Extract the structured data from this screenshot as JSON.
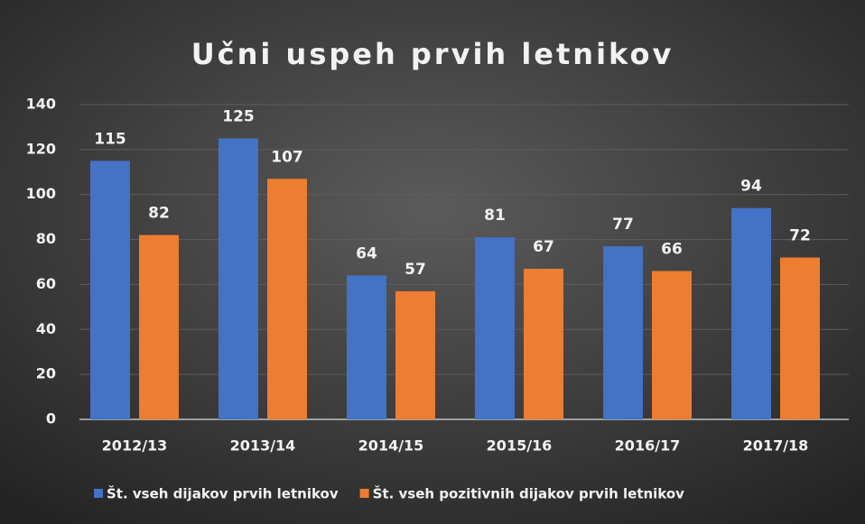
{
  "chart_data": {
    "type": "bar",
    "title": "Učni uspeh prvih letnikov",
    "categories": [
      "2012/13",
      "2013/14",
      "2014/15",
      "2015/16",
      "2016/17",
      "2017/18"
    ],
    "series": [
      {
        "name": "Št. vseh dijakov prvih letnikov",
        "color": "#4472c4",
        "values": [
          115,
          125,
          64,
          81,
          77,
          94
        ]
      },
      {
        "name": "Št. vseh pozitivnih dijakov prvih letnikov",
        "color": "#ed7d31",
        "values": [
          82,
          107,
          57,
          67,
          66,
          72
        ]
      }
    ],
    "ylim": [
      0,
      140
    ],
    "yticks": [
      0,
      20,
      40,
      60,
      80,
      100,
      120,
      140
    ],
    "grid": true,
    "legend": "bottom"
  }
}
